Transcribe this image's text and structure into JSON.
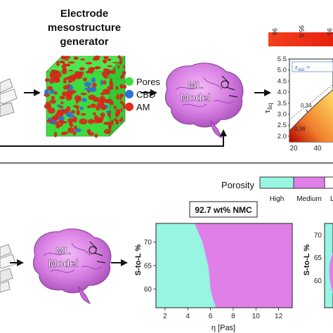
{
  "generator": {
    "title_line1": "Electrode",
    "title_line2": "mesostructure",
    "title_line3": "generator"
  },
  "legend_phases": [
    {
      "label": "Pores",
      "color": "#3fdc3f"
    },
    {
      "label": "CBD",
      "color": "#2f6fd8"
    },
    {
      "label": "AM",
      "color": "#e02a1a"
    }
  ],
  "brain_top": {
    "line1": "ML",
    "line2": "Model"
  },
  "brain_bottom": {
    "line1": "ML",
    "line2": "Model"
  },
  "colorbar_top": {
    "ticks": [
      "96",
      "95.5",
      "95"
    ]
  },
  "inset_plot": {
    "ylabel": "τ",
    "ylabel_sub": "liq",
    "eps_text": "ε",
    "eps_sub": "init",
    "eps_rest": " = ",
    "yticks": [
      "5.5",
      "5.0",
      "4.5",
      "4.0",
      "3.5",
      "3.0",
      "2.5",
      "2.0"
    ],
    "xticks": [
      "20",
      "40"
    ],
    "annot1": "0.34",
    "annot2": "0.36"
  },
  "porosity_legend": {
    "title": "Porosity",
    "labels": [
      "High",
      "Medium",
      "L"
    ],
    "colors": [
      "#97f5e2",
      "#e07fe8",
      "#ffffff"
    ]
  },
  "map_title": "92.7 wt% NMC",
  "chart_data": {
    "type": "heatmap",
    "title": "92.7 wt% NMC",
    "xlabel": "η [Pas]",
    "ylabel": "S-to-L %",
    "xticks": [
      2,
      4,
      6,
      8,
      10,
      12
    ],
    "yticks": [
      60,
      65,
      70
    ],
    "xlim": [
      1.2,
      13.2
    ],
    "ylim": [
      56,
      74
    ],
    "regions": [
      {
        "name": "High",
        "color": "#97f5e2"
      },
      {
        "name": "Medium",
        "color": "#e07fe8"
      }
    ],
    "boundary_eta_at_s2l": [
      [
        74,
        4.6
      ],
      [
        70,
        5.3
      ],
      [
        67,
        5.6
      ],
      [
        65,
        5.8
      ],
      [
        63,
        5.9
      ],
      [
        60,
        6.0
      ],
      [
        58,
        6.2
      ],
      [
        56,
        6.5
      ]
    ]
  },
  "chart2_axis": {
    "ylabel": "S-to-L %",
    "yticks": [
      "70",
      "65",
      "60"
    ]
  },
  "colors": {
    "porosity_high": "#97f5e2",
    "porosity_medium": "#e07fe8",
    "arrow": "#111111"
  }
}
